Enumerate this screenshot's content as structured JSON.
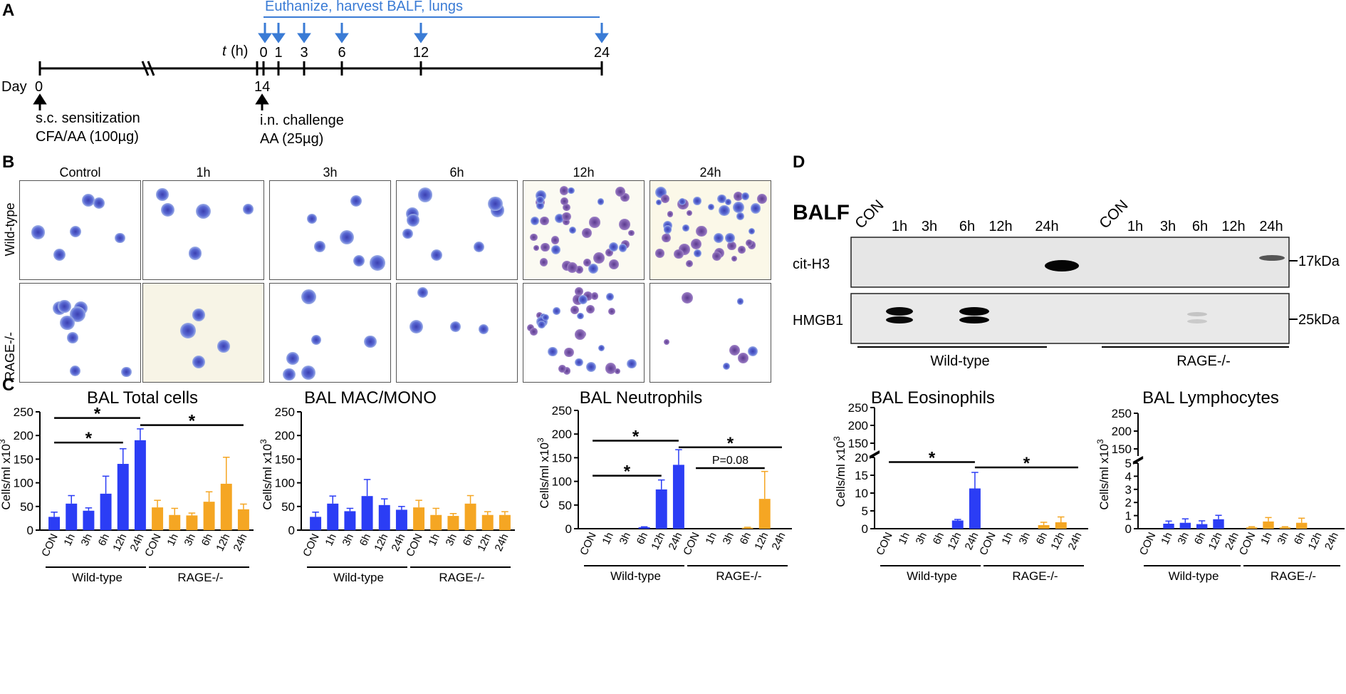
{
  "panels": {
    "a": "A",
    "b": "B",
    "c": "C",
    "d": "D"
  },
  "timeline": {
    "top_label": "Euthanize, harvest BALF, lungs",
    "t_label": "t",
    "t_unit": "(h)",
    "hour_ticks": [
      "0",
      "1",
      "3",
      "6",
      "12",
      "24"
    ],
    "day_label": "Day",
    "day0": "0",
    "day14": "14",
    "sens1": "s.c. sensitization",
    "sens2": "CFA/AA (100µg)",
    "chal1": "i.n. challenge",
    "chal2": "AA (25µg)"
  },
  "micrographs": {
    "columns": [
      "Control",
      "1h",
      "3h",
      "6h",
      "12h",
      "24h"
    ],
    "rows": [
      "Wild-type",
      "RAGE-/-"
    ]
  },
  "western": {
    "title": "BALF",
    "lanes": [
      "CON",
      "1h",
      "3h",
      "6h",
      "12h",
      "24h",
      "CON",
      "1h",
      "3h",
      "6h",
      "12h",
      "24h"
    ],
    "rows": [
      "cit-H3",
      "HMGB1"
    ],
    "markers": [
      "17kDa",
      "25kDa"
    ],
    "groups": [
      "Wild-type",
      "RAGE-/-"
    ]
  },
  "colors": {
    "wt": "#2b3df5",
    "rage": "#f5a623",
    "timeline": "#3a7bd5"
  },
  "chart_data": [
    {
      "type": "bar",
      "title": "BAL Total cells",
      "ylabel": "Cells/ml x10",
      "ylabel_sup": "3",
      "ylim": [
        0,
        250
      ],
      "yticks": [
        "0",
        "50",
        "100",
        "150",
        "200",
        "250"
      ],
      "categories": [
        "CON",
        "1h",
        "3h",
        "6h",
        "12h",
        "24h",
        "CON",
        "1h",
        "3h",
        "6h",
        "12h",
        "24h"
      ],
      "values": [
        28,
        56,
        41,
        77,
        140,
        190,
        48,
        32,
        31,
        60,
        98,
        44
      ],
      "errors": [
        10,
        17,
        6,
        37,
        32,
        24,
        15,
        14,
        5,
        21,
        56,
        11
      ],
      "groups": [
        "Wild-type",
        "RAGE-/-"
      ],
      "annotations": [
        {
          "text": "*",
          "from": 0,
          "to": 5,
          "level": 237
        },
        {
          "text": "*",
          "from": 5,
          "to": 11,
          "level": 222
        },
        {
          "text": "*",
          "from": 0,
          "to": 4,
          "level": 185
        }
      ]
    },
    {
      "type": "bar",
      "title": "BAL MAC/MONO",
      "ylabel": "Cells/ml x10",
      "ylabel_sup": "3",
      "ylim": [
        0,
        250
      ],
      "yticks": [
        "0",
        "50",
        "100",
        "150",
        "200",
        "250"
      ],
      "categories": [
        "CON",
        "1h",
        "3h",
        "6h",
        "12h",
        "24h",
        "CON",
        "1h",
        "3h",
        "6h",
        "12h",
        "24h"
      ],
      "values": [
        28,
        56,
        40,
        72,
        53,
        43,
        48,
        32,
        30,
        56,
        32,
        32
      ],
      "errors": [
        10,
        16,
        6,
        35,
        13,
        7,
        15,
        14,
        5,
        17,
        7,
        7
      ],
      "groups": [
        "Wild-type",
        "RAGE-/-"
      ],
      "annotations": []
    },
    {
      "type": "bar",
      "title": "BAL Neutrophils",
      "ylabel": "Cells/ml x10",
      "ylabel_sup": "3",
      "ylim": [
        0,
        250
      ],
      "yticks": [
        "0",
        "50",
        "100",
        "150",
        "200",
        "250"
      ],
      "categories": [
        "CON",
        "1h",
        "3h",
        "6h",
        "12h",
        "24h",
        "CON",
        "1h",
        "3h",
        "6h",
        "12h",
        "24h"
      ],
      "values": [
        0,
        0,
        0,
        3,
        83,
        135,
        0,
        0,
        0,
        2,
        63,
        0
      ],
      "errors": [
        0,
        0,
        0,
        1,
        20,
        32,
        0,
        0,
        0,
        1,
        58,
        0
      ],
      "groups": [
        "Wild-type",
        "RAGE-/-"
      ],
      "annotations": [
        {
          "text": "*",
          "from": 0,
          "to": 5,
          "level": 186
        },
        {
          "text": "*",
          "from": 5,
          "to": 11,
          "level": 172
        },
        {
          "text": "*",
          "from": 0,
          "to": 4,
          "level": 112
        },
        {
          "text": "P=0.08",
          "from": 6,
          "to": 10,
          "level": 128
        }
      ]
    },
    {
      "type": "bar",
      "title": "BAL Eosinophils",
      "ylabel": "Cells/ml x10",
      "ylabel_sup": "3",
      "broken_axis": {
        "lower": [
          0,
          20
        ],
        "upper": [
          130,
          250
        ]
      },
      "yticks_lower": [
        "0",
        "5",
        "10",
        "15",
        "20"
      ],
      "yticks_upper": [
        "150",
        "200",
        "250"
      ],
      "categories": [
        "CON",
        "1h",
        "3h",
        "6h",
        "12h",
        "24h",
        "CON",
        "1h",
        "3h",
        "6h",
        "12h",
        "24h"
      ],
      "values": [
        0,
        0,
        0,
        0,
        2.3,
        11.3,
        0,
        0,
        0,
        1.0,
        1.8,
        0
      ],
      "errors": [
        0,
        0,
        0,
        0,
        0.3,
        4.5,
        0,
        0,
        0,
        0.8,
        1.5,
        0
      ],
      "groups": [
        "Wild-type",
        "RAGE-/-"
      ],
      "annotations": [
        {
          "text": "*",
          "from": 0,
          "to": 5,
          "level": 18.7
        },
        {
          "text": "*",
          "from": 5,
          "to": 11,
          "level": 17.2
        }
      ]
    },
    {
      "type": "bar",
      "title": "BAL Lymphocytes",
      "ylabel": "Cells/ml x10",
      "ylabel_sup": "3",
      "broken_axis": {
        "lower": [
          0,
          5
        ],
        "upper": [
          130,
          250
        ]
      },
      "yticks_lower": [
        "0",
        "1",
        "2",
        "3",
        "4",
        "5"
      ],
      "yticks_upper": [
        "150",
        "200",
        "250"
      ],
      "categories": [
        "CON",
        "1h",
        "3h",
        "6h",
        "12h",
        "24h",
        "CON",
        "1h",
        "3h",
        "6h",
        "12h",
        "24h"
      ],
      "values": [
        0,
        0.38,
        0.45,
        0.35,
        0.72,
        0,
        0.1,
        0.55,
        0.1,
        0.45,
        0,
        0
      ],
      "errors": [
        0,
        0.2,
        0.3,
        0.25,
        0.3,
        0,
        0.05,
        0.3,
        0.05,
        0.35,
        0,
        0
      ],
      "groups": [
        "Wild-type",
        "RAGE-/-"
      ],
      "annotations": []
    }
  ]
}
